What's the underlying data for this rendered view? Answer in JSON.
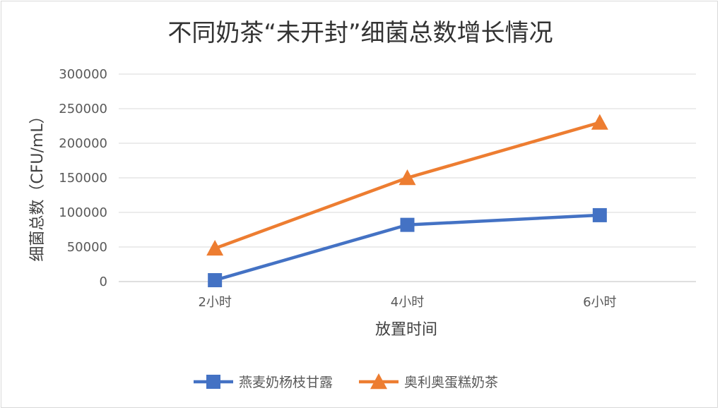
{
  "chart_data": {
    "type": "line",
    "title": "不同奶茶“未开封”细菌总数增长情况",
    "xlabel": "放置时间",
    "ylabel": "细菌总数（CFU/mL）",
    "categories": [
      "2小时",
      "4小时",
      "6小时"
    ],
    "ylim": [
      0,
      300000
    ],
    "yticks": [
      0,
      50000,
      100000,
      150000,
      200000,
      250000,
      300000
    ],
    "grid": true,
    "legend_position": "bottom",
    "series": [
      {
        "name": "燕麦奶杨枝甘露",
        "values": [
          2000,
          82000,
          96000
        ],
        "color": "#4472C4",
        "marker": "square"
      },
      {
        "name": "奥利奥蛋糕奶茶",
        "values": [
          48000,
          150000,
          230000
        ],
        "color": "#ED7D31",
        "marker": "triangle"
      }
    ]
  }
}
